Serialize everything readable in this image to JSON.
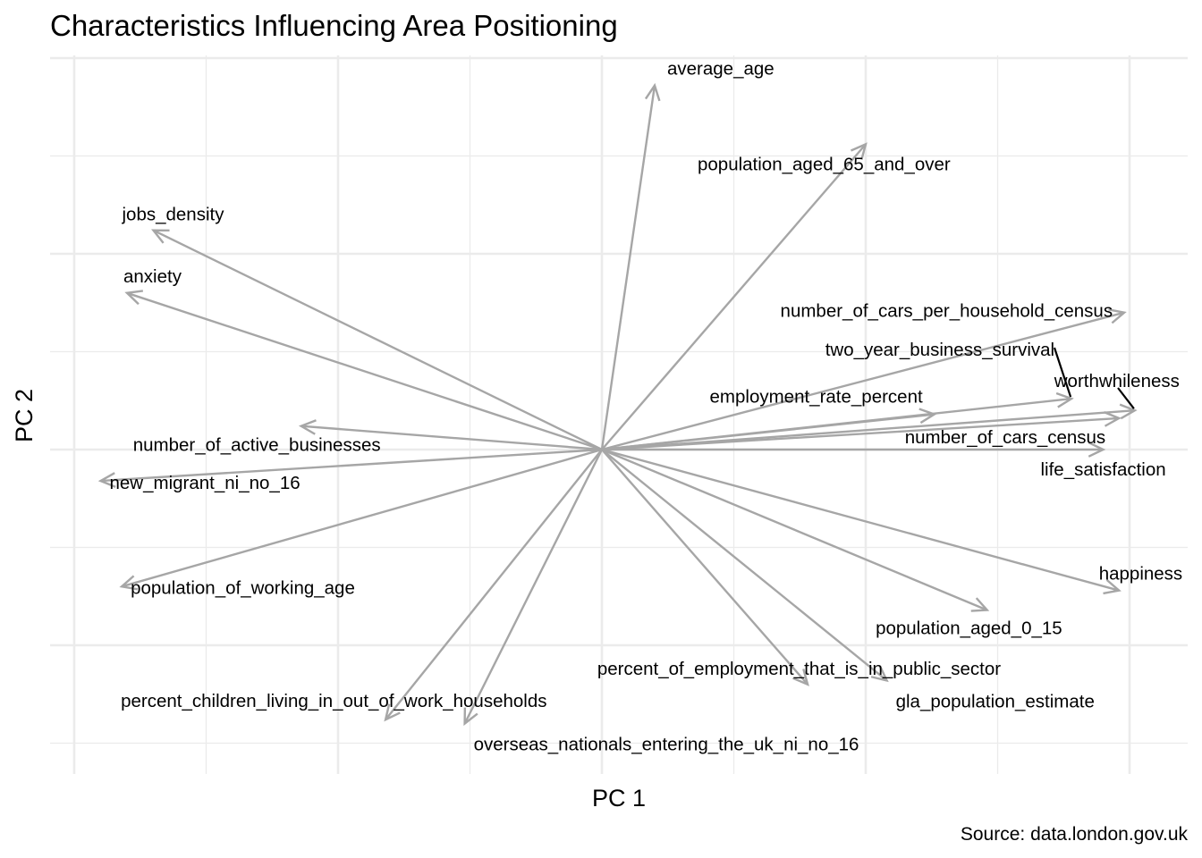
{
  "chart_data": {
    "type": "biplot",
    "title": "Characteristics Influencing Area Positioning",
    "xlabel": "PC 1",
    "ylabel": "PC 2",
    "caption": "Source: data.london.gov.uk",
    "xlim": [
      -1.0,
      1.0
    ],
    "ylim": [
      -1.0,
      1.0
    ],
    "grid": true,
    "tick_labels": false,
    "loadings": [
      {
        "name": "average_age",
        "x": 0.1,
        "y": 0.93
      },
      {
        "name": "population_aged_65_and_over",
        "x": 0.5,
        "y": 0.78
      },
      {
        "name": "jobs_density",
        "x": -0.85,
        "y": 0.56
      },
      {
        "name": "anxiety",
        "x": -0.9,
        "y": 0.4
      },
      {
        "name": "number_of_cars_per_household_census",
        "x": 0.99,
        "y": 0.35
      },
      {
        "name": "two_year_business_survival",
        "x": 0.89,
        "y": 0.13
      },
      {
        "name": "employment_rate_percent",
        "x": 0.63,
        "y": 0.09
      },
      {
        "name": "worthwhileness",
        "x": 1.01,
        "y": 0.1
      },
      {
        "name": "number_of_cars_census",
        "x": 0.98,
        "y": 0.08
      },
      {
        "name": "life_satisfaction",
        "x": 0.95,
        "y": 0.0
      },
      {
        "name": "number_of_active_businesses",
        "x": -0.57,
        "y": 0.06
      },
      {
        "name": "new_migrant_ni_no_16",
        "x": -0.95,
        "y": -0.08
      },
      {
        "name": "population_of_working_age",
        "x": -0.91,
        "y": -0.35
      },
      {
        "name": "happiness",
        "x": 0.98,
        "y": -0.36
      },
      {
        "name": "population_aged_0_15",
        "x": 0.73,
        "y": -0.41
      },
      {
        "name": "percent_of_employment_that_is_in_public_sector",
        "x": 0.39,
        "y": -0.6
      },
      {
        "name": "gla_population_estimate",
        "x": 0.54,
        "y": -0.59
      },
      {
        "name": "percent_children_living_in_out_of_work_households",
        "x": -0.41,
        "y": -0.69
      },
      {
        "name": "overseas_nationals_entering_the_uk_ni_no_16",
        "x": -0.26,
        "y": -0.7
      }
    ]
  }
}
